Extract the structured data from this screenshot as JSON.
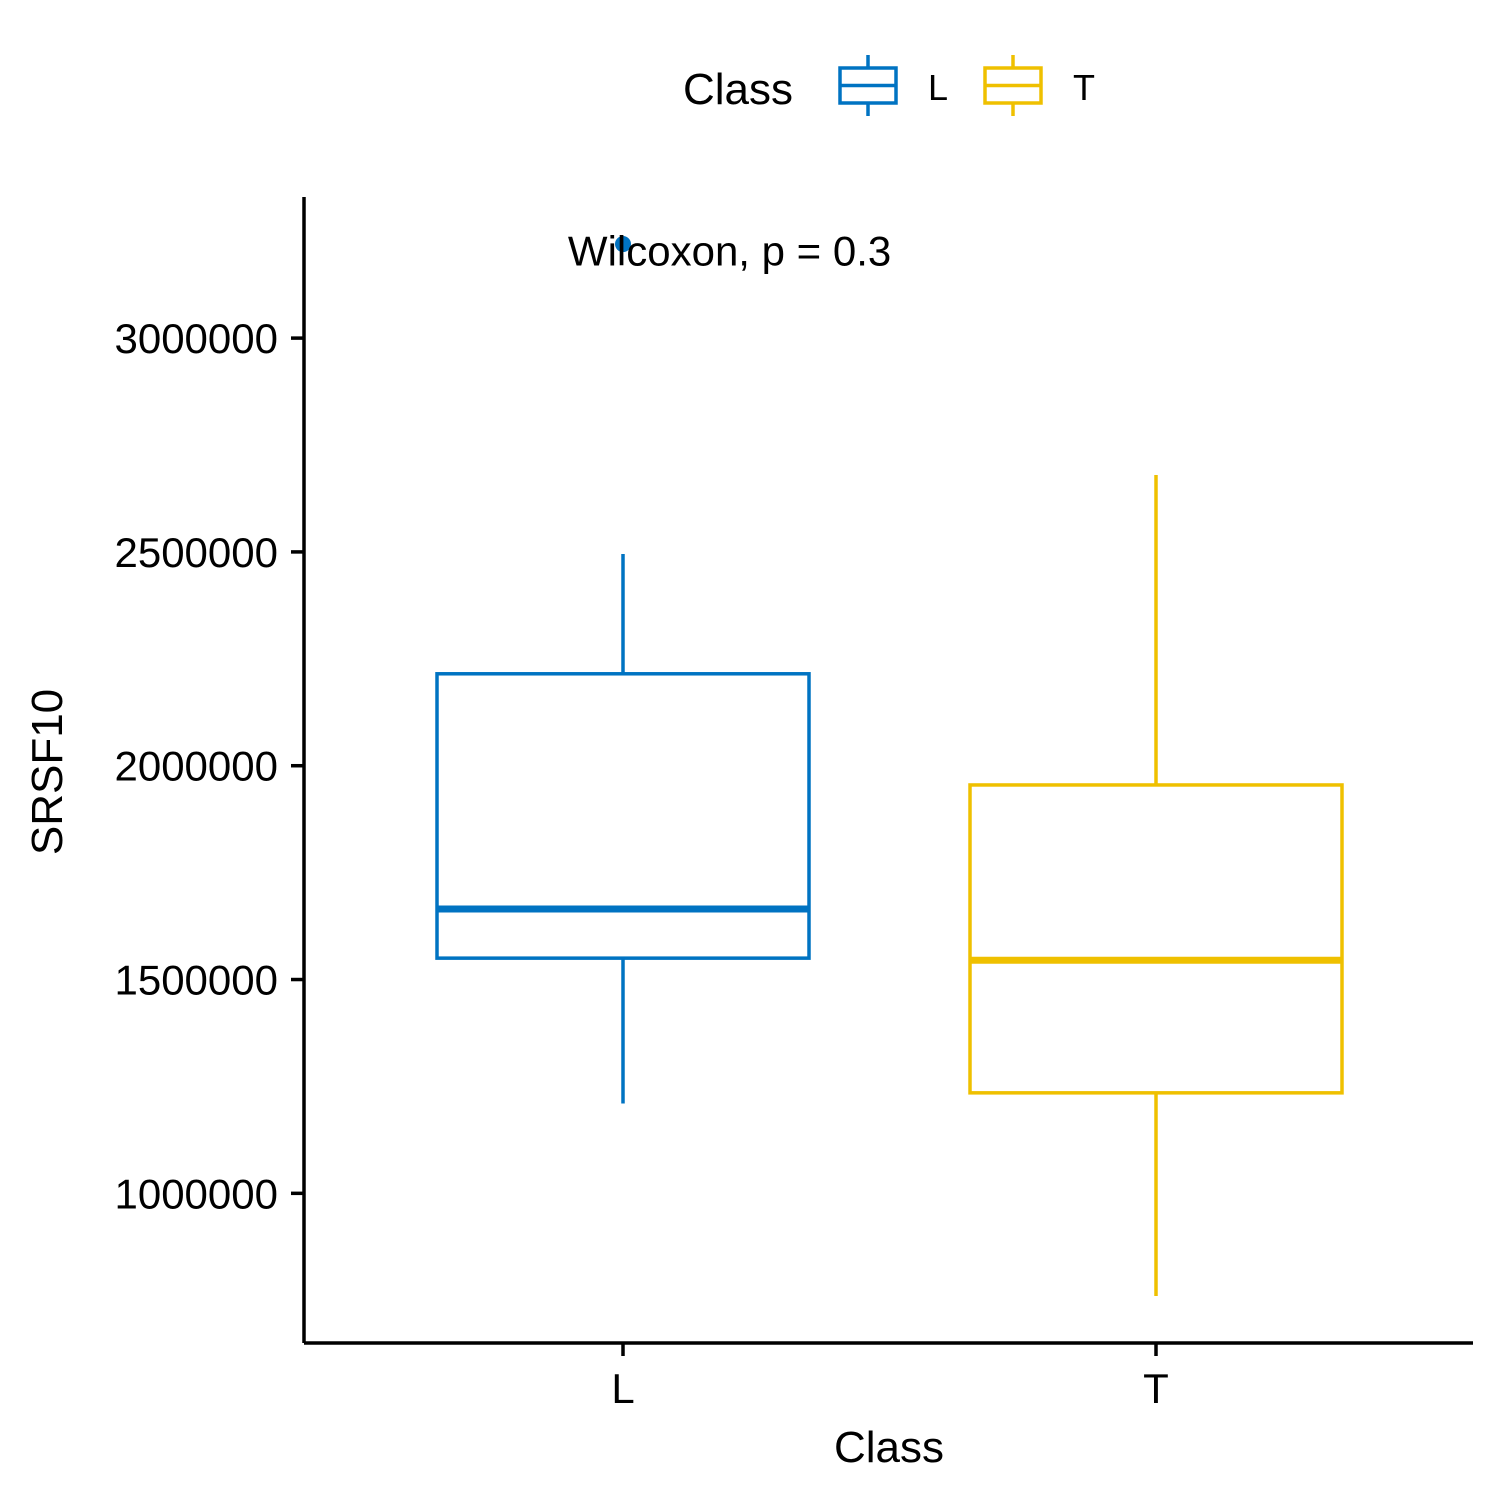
{
  "chart_data": {
    "type": "boxplot",
    "xlabel": "Class",
    "ylabel": "SRSF10",
    "categories": [
      "L",
      "T"
    ],
    "ylim": [
      650000,
      3330000
    ],
    "yticks": [
      1000000,
      1500000,
      2000000,
      2500000,
      3000000
    ],
    "ytick_labels": [
      "1000000",
      "1500000",
      "2000000",
      "2500000",
      "3000000"
    ],
    "grid": false,
    "legend": {
      "title": "Class",
      "position": "top",
      "items": [
        {
          "label": "L",
          "color": "#0073C2"
        },
        {
          "label": "T",
          "color": "#EFC000"
        }
      ]
    },
    "annotation": {
      "text": "Wilcoxon, p = 0.3",
      "x": 1.2,
      "y": 3205000
    },
    "boxes": [
      {
        "category": "L",
        "color": "#0073C2",
        "whisker_low": 1210000,
        "q1": 1550000,
        "median": 1665000,
        "q3": 2215000,
        "whisker_high": 2495000,
        "outliers": [
          3220000
        ]
      },
      {
        "category": "T",
        "color": "#EFC000",
        "whisker_low": 760000,
        "q1": 1235000,
        "median": 1545000,
        "q3": 1955000,
        "whisker_high": 2680000,
        "outliers": []
      }
    ]
  }
}
